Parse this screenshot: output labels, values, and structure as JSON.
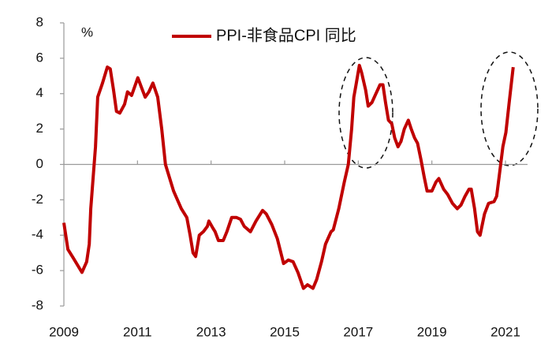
{
  "chart_data": {
    "type": "line",
    "unit": "%",
    "xlim": [
      2009,
      2021.6
    ],
    "xticks": [
      2009,
      2011,
      2013,
      2015,
      2017,
      2019,
      2021
    ],
    "ylim": [
      -8,
      8
    ],
    "yticks": [
      -8,
      -6,
      -4,
      -2,
      0,
      2,
      4,
      6,
      8
    ],
    "legend": "top",
    "series": [
      {
        "name": "PPI-非食品CPI 同比",
        "color": "#c00000",
        "x": [
          2009.0,
          2009.11,
          2009.26,
          2009.49,
          2009.62,
          2009.69,
          2009.73,
          2009.86,
          2009.92,
          2010.05,
          2010.18,
          2010.26,
          2010.35,
          2010.43,
          2010.52,
          2010.65,
          2010.73,
          2010.84,
          2011.01,
          2011.1,
          2011.21,
          2011.31,
          2011.42,
          2011.55,
          2011.66,
          2011.76,
          2011.98,
          2012.19,
          2012.34,
          2012.43,
          2012.51,
          2012.58,
          2012.68,
          2012.79,
          2012.9,
          2012.94,
          2013.05,
          2013.11,
          2013.2,
          2013.33,
          2013.43,
          2013.56,
          2013.69,
          2013.8,
          2013.9,
          2014.07,
          2014.22,
          2014.4,
          2014.5,
          2014.65,
          2014.8,
          2014.97,
          2015.1,
          2015.23,
          2015.36,
          2015.51,
          2015.62,
          2015.77,
          2015.87,
          2016.0,
          2016.11,
          2016.26,
          2016.32,
          2016.47,
          2016.62,
          2016.73,
          2016.82,
          2016.88,
          2016.94,
          2017.03,
          2017.09,
          2017.2,
          2017.27,
          2017.37,
          2017.48,
          2017.59,
          2017.67,
          2017.74,
          2017.82,
          2017.91,
          2017.99,
          2018.08,
          2018.16,
          2018.25,
          2018.36,
          2018.44,
          2018.53,
          2018.61,
          2018.7,
          2018.79,
          2018.87,
          2019.0,
          2019.11,
          2019.19,
          2019.32,
          2019.43,
          2019.56,
          2019.69,
          2019.79,
          2019.9,
          2020.01,
          2020.07,
          2020.16,
          2020.24,
          2020.31,
          2020.43,
          2020.54,
          2020.69,
          2020.76,
          2020.84,
          2020.93,
          2021.01,
          2021.1,
          2021.21
        ],
        "values": [
          -3.3,
          -4.8,
          -5.3,
          -6.1,
          -5.5,
          -4.5,
          -2.5,
          1.0,
          3.8,
          4.6,
          5.5,
          5.4,
          4.2,
          3.0,
          2.9,
          3.4,
          4.1,
          3.9,
          4.9,
          4.4,
          3.8,
          4.1,
          4.6,
          3.8,
          2.0,
          0.0,
          -1.5,
          -2.5,
          -3.0,
          -4.0,
          -5.0,
          -5.2,
          -4.0,
          -3.8,
          -3.5,
          -3.2,
          -3.6,
          -3.8,
          -4.3,
          -4.3,
          -3.8,
          -3.0,
          -3.0,
          -3.1,
          -3.5,
          -3.8,
          -3.2,
          -2.6,
          -2.8,
          -3.4,
          -4.2,
          -5.6,
          -5.4,
          -5.5,
          -6.1,
          -7.0,
          -6.8,
          -7.0,
          -6.5,
          -5.5,
          -4.5,
          -3.8,
          -3.7,
          -2.5,
          -1.0,
          0.0,
          2.0,
          3.8,
          4.5,
          5.6,
          5.2,
          4.2,
          3.3,
          3.5,
          4.0,
          4.5,
          4.5,
          3.5,
          2.5,
          2.3,
          1.5,
          1.0,
          1.3,
          2.0,
          2.5,
          2.0,
          1.5,
          1.2,
          0.3,
          -0.7,
          -1.5,
          -1.5,
          -1.0,
          -0.8,
          -1.4,
          -1.7,
          -2.2,
          -2.5,
          -2.3,
          -1.8,
          -1.4,
          -1.4,
          -2.5,
          -3.8,
          -4.0,
          -2.8,
          -2.2,
          -2.1,
          -1.8,
          -0.5,
          1.0,
          1.8,
          3.5,
          5.5
        ]
      }
    ]
  }
}
